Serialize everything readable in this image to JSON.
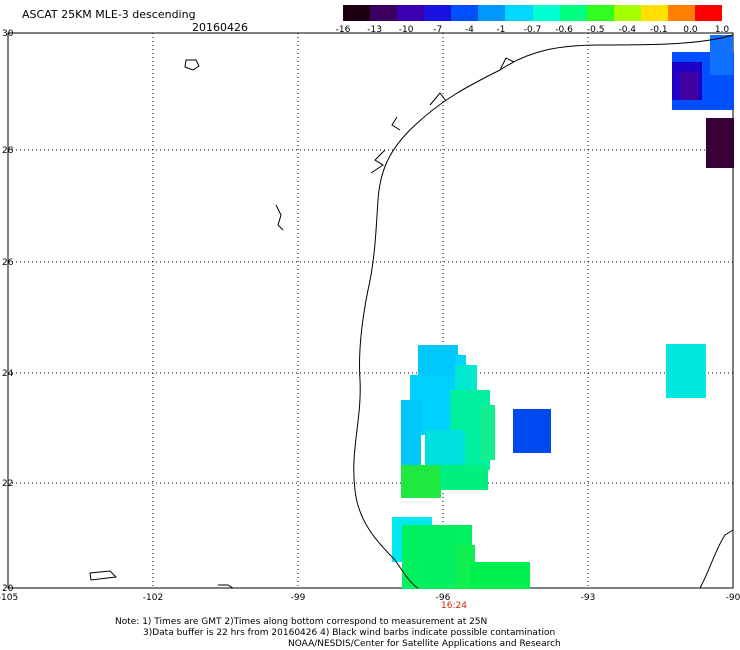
{
  "header": {
    "title": "ASCAT 25KM MLE-3 descending",
    "date": "20160426"
  },
  "colorbar": {
    "labels": [
      "-16",
      "-13",
      "-10",
      "-7",
      "-4",
      "-1",
      "-0.7",
      "-0.6",
      "-0.5",
      "-0.4",
      "-0.1",
      "0.0",
      "1.0"
    ],
    "colors": [
      "#1a0010",
      "#3a0060",
      "#3a00b0",
      "#1a10e0",
      "#0050ff",
      "#0098ff",
      "#00d8ff",
      "#00ffd0",
      "#00ff80",
      "#30ff20",
      "#a8ff00",
      "#ffe000",
      "#ff8000",
      "#ff0000"
    ]
  },
  "axes": {
    "x_ticks": [
      "-105",
      "-102",
      "-99",
      "-96",
      "-93",
      "-90"
    ],
    "y_ticks": [
      "30",
      "28",
      "26",
      "24",
      "22",
      "20"
    ]
  },
  "time_label": "16:24",
  "notes": {
    "line1": "Note: 1) Times are GMT 2)Times along bottom correspond to measurement at 25N",
    "line2": "3)Data buffer is 22 hrs from 20160426 4) Black wind barbs indicate possible contamination",
    "line3": "NOAA/NESDIS/Center for Satellite Applications and Research"
  },
  "colors": {
    "cyan": "#00ccff",
    "light_cyan": "#00e0f0",
    "green": "#00f060",
    "blue": "#0040ff",
    "dark_purple": "#3a003a"
  }
}
